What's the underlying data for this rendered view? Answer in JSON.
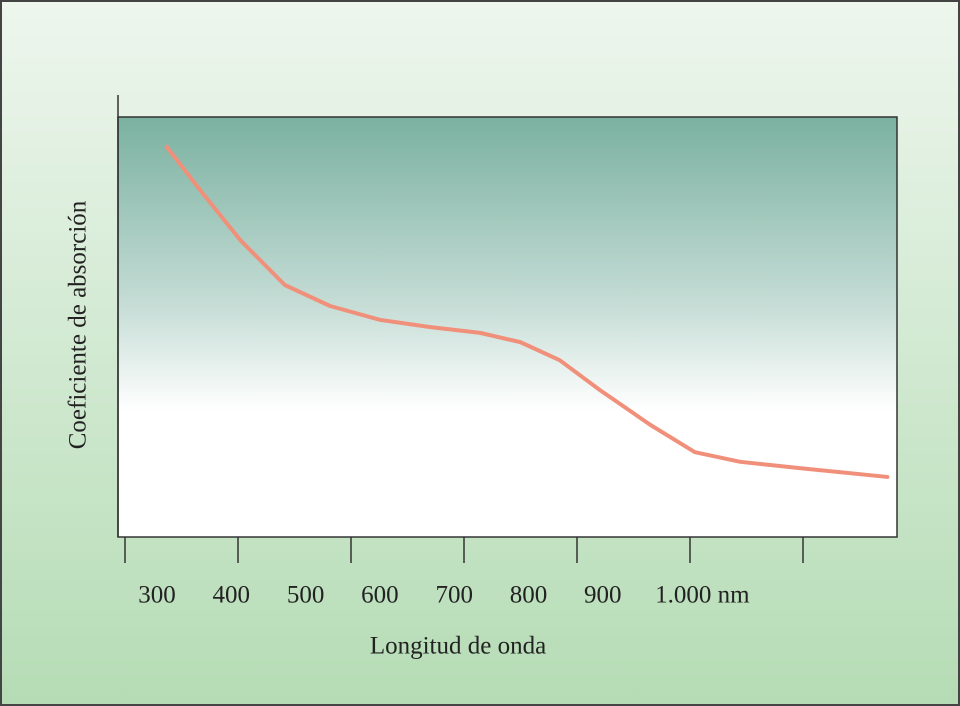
{
  "chart_data": {
    "type": "line",
    "x_label": "Longitud de onda",
    "y_label": "Coeficiente de absorción",
    "series": [
      {
        "color": "#f0907a",
        "x": [
          313,
          358,
          412,
          472,
          533,
          600,
          667,
          735,
          789,
          842,
          896,
          964,
          1024,
          1085,
          1165,
          1283
        ],
        "values": [
          92.9,
          82.6,
          70.7,
          60,
          55,
          51.7,
          50,
          48.6,
          46.4,
          42.1,
          35,
          26.7,
          20.2,
          17.9,
          16.4,
          14.3
        ]
      }
    ],
    "xlim": [
      247.5,
      1296
    ],
    "ylim": [
      0,
      100
    ],
    "xticks": [
      300,
      400,
      500,
      600,
      700,
      800,
      900,
      {
        "value": 1000,
        "label": "1.000 nm"
      }
    ]
  }
}
